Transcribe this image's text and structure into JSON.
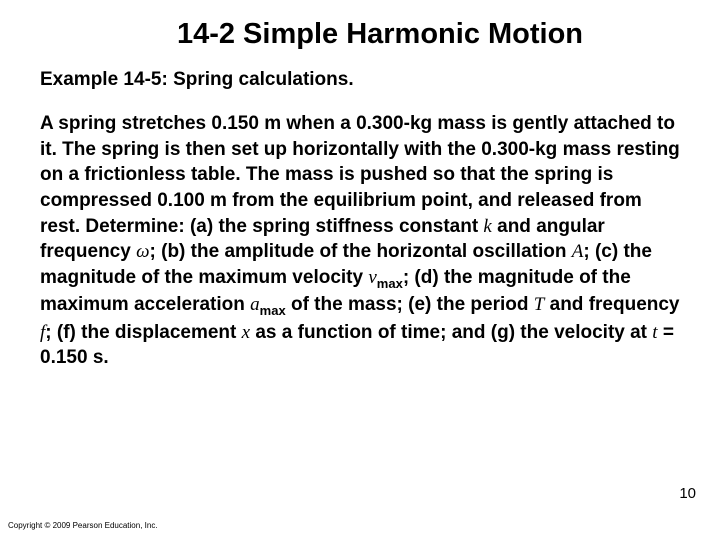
{
  "title": "14-2 Simple Harmonic Motion",
  "subtitle": "Example 14-5: Spring calculations.",
  "body": {
    "t0": "A spring stretches 0.150 m when a 0.300-kg mass is gently attached to it. The spring is then set up horizontally with the 0.300-kg mass resting on a frictionless table. The mass is pushed so that the spring is compressed 0.100 m from the equilibrium point, and released from rest. Determine: (a) the spring stiffness constant ",
    "k": "k",
    "t1": " and angular frequency ",
    "omega": "ω",
    "t2": "; (b) the amplitude of the horizontal oscillation ",
    "A": "A",
    "t3": "; (c) the magnitude of the maximum velocity ",
    "v": "v",
    "vmax": "max",
    "t4": "; (d) the magnitude of the maximum acceleration ",
    "a": "a",
    "amax": "max",
    "t5": " of the mass; (e) the period ",
    "T": "T",
    "t6": " and frequency ",
    "f": "f",
    "t7": "; (f) the displacement ",
    "x": "x",
    "t8": " as a function of time; and (g) the velocity at ",
    "tvar": "t",
    "t9": " = 0.150 s."
  },
  "pagenum": "10",
  "copyright": "Copyright © 2009 Pearson Education, Inc."
}
